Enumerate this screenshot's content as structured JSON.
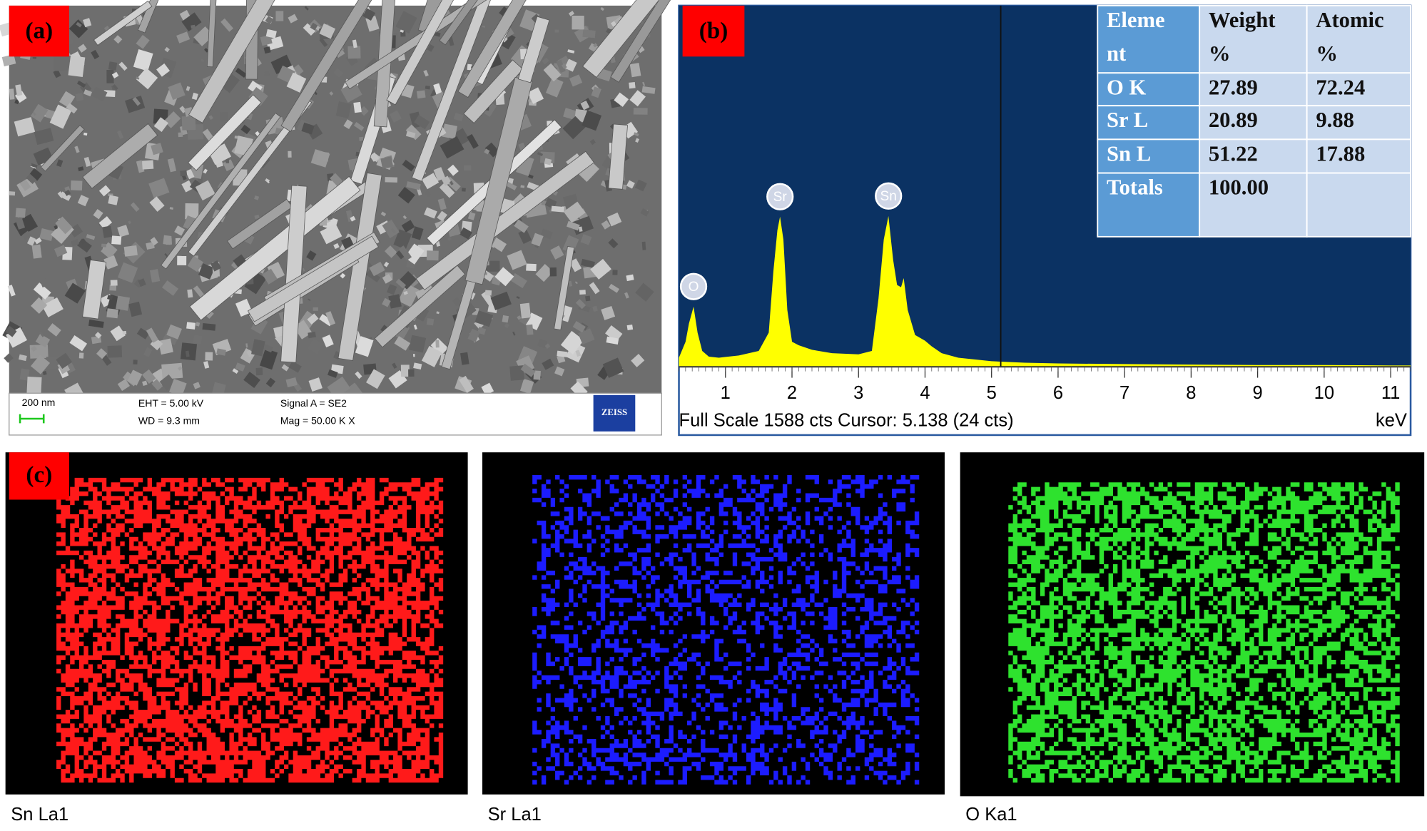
{
  "panel_a": {
    "label": "(a)",
    "scale": "200 nm",
    "eht": "EHT = 5.00 kV",
    "wd": "WD = 9.3 mm",
    "signal": "Signal A = SE2",
    "mag": "Mag = 50.00 K X",
    "logo": "ZEISS"
  },
  "chart_data": {
    "type": "area",
    "label": "(b)",
    "color": "#ffff00",
    "background": "#0b3263",
    "x": [
      0.3,
      0.4,
      0.45,
      0.52,
      0.58,
      0.65,
      0.75,
      0.9,
      1.2,
      1.5,
      1.65,
      1.72,
      1.78,
      1.82,
      1.87,
      1.93,
      2.0,
      2.1,
      2.3,
      2.6,
      3.0,
      3.2,
      3.3,
      3.38,
      3.45,
      3.52,
      3.58,
      3.64,
      3.68,
      3.74,
      3.85,
      4.0,
      4.1,
      4.25,
      4.5,
      5.0,
      5.5,
      6,
      7,
      8,
      9,
      10,
      11,
      11.3
    ],
    "values": [
      40,
      110,
      190,
      265,
      150,
      70,
      45,
      40,
      50,
      70,
      150,
      420,
      600,
      660,
      560,
      250,
      110,
      95,
      75,
      60,
      55,
      70,
      300,
      560,
      663,
      470,
      360,
      350,
      390,
      250,
      140,
      115,
      90,
      60,
      40,
      25,
      18,
      15,
      12,
      10,
      8,
      8,
      6,
      6
    ],
    "xlim": [
      0.3,
      11.3
    ],
    "ylim": [
      0,
      1588
    ],
    "xticks": [
      1,
      2,
      3,
      4,
      5,
      6,
      7,
      8,
      9,
      10,
      11
    ],
    "cursor_x": 5.138,
    "peak_labels": [
      {
        "label": "O",
        "x": 0.52
      },
      {
        "label": "Sr",
        "x": 1.82
      },
      {
        "label": "Sn",
        "x": 3.45
      }
    ],
    "footer": "Full Scale 1588 cts Cursor: 5.138  (24 cts)",
    "unit": "keV",
    "table": {
      "header": [
        [
          "Eleme",
          "nt"
        ],
        [
          "Weight",
          "%"
        ],
        [
          "Atomic",
          "%"
        ]
      ],
      "rows": [
        [
          "O K",
          "27.89",
          "72.24"
        ],
        [
          "Sr L",
          "20.89",
          "9.88"
        ],
        [
          "Sn L",
          "51.22",
          "17.88"
        ],
        [
          "Totals",
          "100.00",
          ""
        ]
      ]
    }
  },
  "panel_c": {
    "label": "(c)",
    "maps": [
      {
        "name": "Sn La1",
        "color": "#ff1a1a"
      },
      {
        "name": "Sr La1",
        "color": "#1c1cff"
      },
      {
        "name": "O Ka1",
        "color": "#2ee22e"
      }
    ]
  }
}
